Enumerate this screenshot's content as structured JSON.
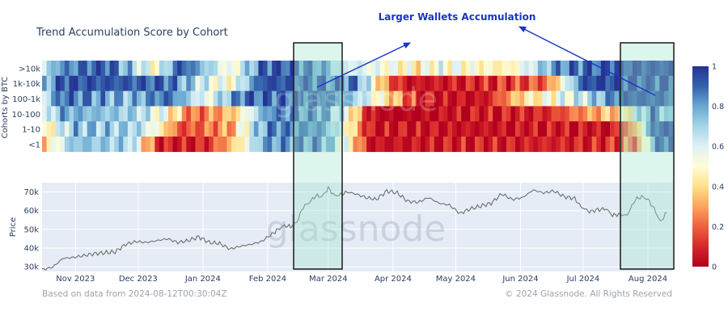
{
  "chart_data": [
    {
      "type": "heatmap",
      "title": "Trend Accumulation Score by Cohort",
      "ylabel": "Cohorts by BTC",
      "rows": [
        ">10k",
        "1k-10k",
        "100-1k",
        "10-100",
        "1-10",
        "<1"
      ],
      "colorbar": {
        "ticks": [
          "1",
          "0.8",
          "0.6",
          "0.4",
          "0.2",
          "0"
        ],
        "range": [
          0,
          1
        ],
        "stops": [
          {
            "v": 0.0,
            "c": "#b2001e"
          },
          {
            "v": 0.1,
            "c": "#d8262a"
          },
          {
            "v": 0.2,
            "c": "#ef6040"
          },
          {
            "v": 0.3,
            "c": "#fca35e"
          },
          {
            "v": 0.4,
            "c": "#fee08b"
          },
          {
            "v": 0.5,
            "c": "#fffdd5"
          },
          {
            "v": 0.6,
            "c": "#dff2f6"
          },
          {
            "v": 0.7,
            "c": "#a6d5e8"
          },
          {
            "v": 0.8,
            "c": "#6aa8d0"
          },
          {
            "v": 0.9,
            "c": "#3462ab"
          },
          {
            "v": 1.0,
            "c": "#253494"
          }
        ]
      },
      "segments": [
        [
          [
            0,
            0.55
          ],
          [
            0.02,
            0.8
          ],
          [
            0.1,
            0.95
          ],
          [
            0.18,
            0.5
          ],
          [
            0.22,
            0.95
          ],
          [
            0.3,
            0.5
          ],
          [
            0.35,
            0.9
          ],
          [
            0.38,
            0.95
          ],
          [
            0.45,
            0.8
          ],
          [
            0.47,
            0.65
          ],
          [
            0.6,
            0.45
          ],
          [
            0.62,
            0.55
          ],
          [
            0.74,
            0.45
          ],
          [
            0.82,
            0.85
          ],
          [
            0.87,
            0.9
          ],
          [
            0.9,
            0.95
          ],
          [
            1,
            0.95
          ]
        ],
        [
          [
            0,
            0.7
          ],
          [
            0.03,
            0.95
          ],
          [
            0.2,
            0.9
          ],
          [
            0.26,
            0.6
          ],
          [
            0.3,
            0.5
          ],
          [
            0.35,
            0.95
          ],
          [
            0.5,
            0.85
          ],
          [
            0.55,
            0.2
          ],
          [
            0.58,
            0.05
          ],
          [
            0.7,
            0.1
          ],
          [
            0.8,
            0.2
          ],
          [
            0.86,
            0.95
          ],
          [
            1,
            0.95
          ]
        ],
        [
          [
            0,
            0.6
          ],
          [
            0.03,
            0.9
          ],
          [
            0.14,
            0.75
          ],
          [
            0.2,
            0.9
          ],
          [
            0.26,
            0.55
          ],
          [
            0.32,
            0.9
          ],
          [
            0.45,
            0.9
          ],
          [
            0.5,
            0.7
          ],
          [
            0.55,
            0.4
          ],
          [
            0.6,
            0.05
          ],
          [
            0.7,
            0.05
          ],
          [
            0.76,
            0.4
          ],
          [
            0.86,
            0.65
          ],
          [
            0.93,
            0.95
          ],
          [
            1,
            0.9
          ]
        ],
        [
          [
            0,
            0.5
          ],
          [
            0.03,
            0.8
          ],
          [
            0.15,
            0.7
          ],
          [
            0.2,
            0.5
          ],
          [
            0.24,
            0.2
          ],
          [
            0.3,
            0.35
          ],
          [
            0.32,
            0.5
          ],
          [
            0.36,
            0.85
          ],
          [
            0.44,
            0.85
          ],
          [
            0.48,
            0.6
          ],
          [
            0.52,
            0.05
          ],
          [
            0.55,
            0.0
          ],
          [
            0.8,
            0.1
          ],
          [
            0.85,
            0.25
          ],
          [
            0.92,
            0.4
          ],
          [
            0.97,
            0.9
          ],
          [
            1,
            0.6
          ]
        ],
        [
          [
            0,
            0.4
          ],
          [
            0.05,
            0.75
          ],
          [
            0.15,
            0.7
          ],
          [
            0.19,
            0.45
          ],
          [
            0.22,
            0.15
          ],
          [
            0.3,
            0.3
          ],
          [
            0.32,
            0.55
          ],
          [
            0.36,
            0.85
          ],
          [
            0.44,
            0.85
          ],
          [
            0.48,
            0.55
          ],
          [
            0.52,
            0.05
          ],
          [
            0.9,
            0.05
          ],
          [
            0.94,
            0.3
          ],
          [
            0.97,
            0.95
          ],
          [
            1,
            0.95
          ]
        ],
        [
          [
            0,
            0.35
          ],
          [
            0.05,
            0.75
          ],
          [
            0.14,
            0.7
          ],
          [
            0.18,
            0.15
          ],
          [
            0.2,
            0.05
          ],
          [
            0.26,
            0.1
          ],
          [
            0.3,
            0.35
          ],
          [
            0.32,
            0.5
          ],
          [
            0.35,
            0.8
          ],
          [
            0.44,
            0.85
          ],
          [
            0.48,
            0.55
          ],
          [
            0.52,
            0.05
          ],
          [
            0.9,
            0.1
          ],
          [
            0.95,
            0.3
          ],
          [
            0.97,
            0.85
          ],
          [
            1,
            0.95
          ]
        ]
      ],
      "highlights": [
        "Feb 2024 – Mar 2024",
        "Jul 2024 – Aug 2024"
      ]
    },
    {
      "type": "line",
      "ylabel": "Price",
      "yticks": [
        "70k",
        "60k",
        "50k",
        "40k",
        "30k"
      ],
      "ytick_values": [
        70000,
        60000,
        50000,
        40000,
        30000
      ],
      "ylim": [
        27500,
        75000
      ],
      "xtick_labels": [
        "Nov 2023",
        "Dec 2023",
        "Jan 2024",
        "Feb 2024",
        "Mar 2024",
        "Apr 2024",
        "May 2024",
        "Jun 2024",
        "Jul 2024",
        "Aug 2024"
      ],
      "xtick_days": [
        16,
        46,
        77,
        108,
        137,
        168,
        198,
        229,
        259,
        290
      ],
      "xlim_days": [
        0,
        302
      ],
      "series": [
        {
          "name": "Price",
          "x": [
            0,
            5,
            10,
            15,
            20,
            25,
            30,
            35,
            40,
            45,
            50,
            55,
            60,
            65,
            70,
            75,
            80,
            85,
            90,
            95,
            100,
            105,
            110,
            113,
            116,
            119,
            122,
            125,
            128,
            131,
            134,
            137,
            140,
            143,
            146,
            150,
            155,
            160,
            165,
            170,
            175,
            180,
            185,
            190,
            195,
            200,
            205,
            210,
            215,
            220,
            225,
            230,
            235,
            240,
            245,
            250,
            255,
            258,
            262,
            266,
            270,
            273,
            276,
            280,
            284,
            287,
            290,
            293,
            296,
            299
          ],
          "values": [
            28500,
            29800,
            34500,
            35000,
            36000,
            37000,
            37500,
            38000,
            42000,
            43500,
            43000,
            44000,
            45000,
            43000,
            44000,
            46000,
            43000,
            42500,
            39500,
            41000,
            42000,
            43500,
            47500,
            50000,
            52000,
            51500,
            54000,
            62000,
            64500,
            68000,
            67500,
            72000,
            68000,
            68500,
            70000,
            69000,
            67000,
            66000,
            70500,
            69500,
            65000,
            64500,
            67000,
            64000,
            63000,
            58500,
            61000,
            62500,
            64000,
            69000,
            66000,
            67000,
            71000,
            69500,
            70500,
            67500,
            66500,
            62000,
            59500,
            60500,
            61000,
            57500,
            58000,
            57500,
            66000,
            67500,
            66000,
            61000,
            54000,
            59000
          ]
        }
      ]
    }
  ],
  "annotation": {
    "label": "Larger Wallets Accumulation"
  },
  "footer": {
    "source": "Based on data from 2024-08-12T00:30:04Z",
    "copyright": "© 2024 Glassnode. All Rights Reserved"
  },
  "watermark": "glassnode",
  "colors": {
    "plot_bg": "#e5ecf6",
    "highlight_fill": "#9ee6cc",
    "highlight_border": "#1a1a1a",
    "arrow": "#1a36c4",
    "price_line": "#6e6e6e",
    "text": "#2a3f5f",
    "footer_text": "#9aa3b2"
  }
}
